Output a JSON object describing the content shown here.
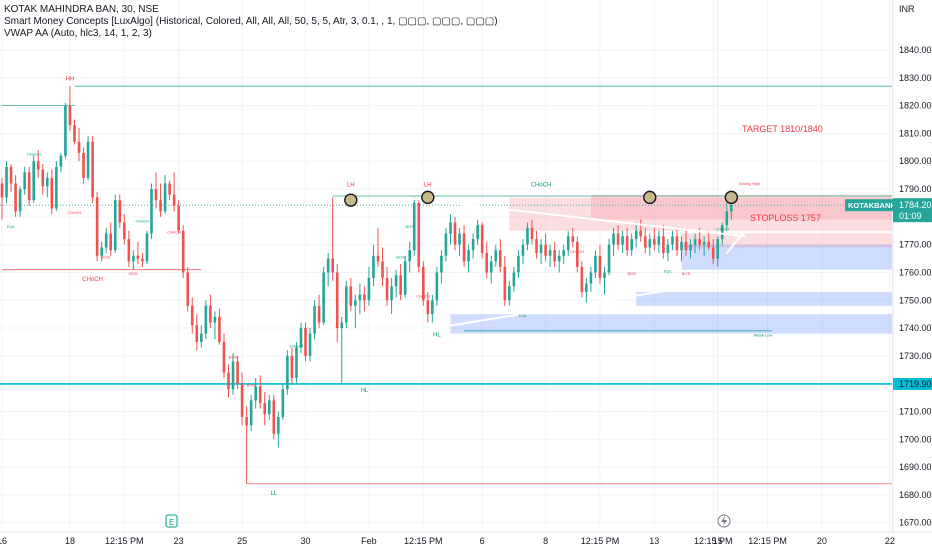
{
  "header": {
    "symbol_line": "KOTAK MAHINDRA BAN, 30, NSE",
    "indicator_smc": "Smart Money Concepts [LuxAlgo] (Historical, Colored, All, All, All, 50, 5, 5, Atr, 3, 0.1, , 1, ▢▢▢, ▢▢▢, ▢▢▢)",
    "indicator_vwap": "VWAP AA (Auto, hlc3, 14, 1, 2, 3)"
  },
  "chart_data": {
    "type": "candlestick",
    "currency_label": "INR",
    "y_ticks": [
      1840,
      1830,
      1820,
      1810,
      1800,
      1790,
      1780,
      1770,
      1760,
      1750,
      1740,
      1730,
      1720,
      1710,
      1700,
      1690,
      1680,
      1670
    ],
    "ylim": [
      1667,
      1858
    ],
    "x_ticks": [
      {
        "label": "16",
        "i": 0
      },
      {
        "label": "18",
        "i": 15
      },
      {
        "label": "12:15 PM",
        "i": 27
      },
      {
        "label": "23",
        "i": 39
      },
      {
        "label": "25",
        "i": 53
      },
      {
        "label": "30",
        "i": 67
      },
      {
        "label": "Feb",
        "i": 81
      },
      {
        "label": "12:15 PM",
        "i": 93
      },
      {
        "label": "6",
        "i": 106
      },
      {
        "label": "8",
        "i": 120
      },
      {
        "label": "12:15 PM",
        "i": 132
      },
      {
        "label": "13",
        "i": 144
      },
      {
        "label": "12:15 PM",
        "i": 157
      },
      {
        "label": "15",
        "i": 158
      },
      {
        "label": "12:15 PM",
        "i": 169
      },
      {
        "label": "20",
        "i": 181
      },
      {
        "label": "22",
        "i": 196
      }
    ],
    "last_price": {
      "symbol": "KOTAKBANK",
      "value": "1784.20",
      "countdown": "01:09",
      "price": 1784.2
    },
    "hline_price": {
      "value": "1719.90",
      "price": 1719.9
    },
    "colors": {
      "up": "#26a69a",
      "down": "#ef5350",
      "cyan": "#00bcd4",
      "bear_zone": "#f7a0a5",
      "bull_zone": "#2962ff",
      "structure_bear": "#f23645",
      "structure_bull": "#089981"
    },
    "candles": [
      [
        1792,
        1794,
        1779,
        1787
      ],
      [
        1787,
        1800,
        1785,
        1798
      ],
      [
        1798,
        1799,
        1789,
        1792
      ],
      [
        1792,
        1795,
        1780,
        1782
      ],
      [
        1782,
        1791,
        1780,
        1790
      ],
      [
        1790,
        1798,
        1788,
        1796
      ],
      [
        1796,
        1798,
        1784,
        1786
      ],
      [
        1786,
        1802,
        1785,
        1800
      ],
      [
        1800,
        1804,
        1794,
        1797
      ],
      [
        1797,
        1799,
        1788,
        1791
      ],
      [
        1791,
        1796,
        1787,
        1794
      ],
      [
        1794,
        1797,
        1781,
        1783
      ],
      [
        1783,
        1800,
        1782,
        1798
      ],
      [
        1798,
        1803,
        1796,
        1802
      ],
      [
        1802,
        1821,
        1801,
        1820
      ],
      [
        1820,
        1827,
        1811,
        1813
      ],
      [
        1813,
        1815,
        1806,
        1807
      ],
      [
        1807,
        1812,
        1800,
        1803
      ],
      [
        1803,
        1805,
        1792,
        1794
      ],
      [
        1794,
        1809,
        1793,
        1807
      ],
      [
        1807,
        1809,
        1785,
        1787
      ],
      [
        1787,
        1789,
        1764,
        1766
      ],
      [
        1766,
        1771,
        1764,
        1769
      ],
      [
        1769,
        1776,
        1767,
        1774
      ],
      [
        1774,
        1778,
        1766,
        1768
      ],
      [
        1768,
        1788,
        1767,
        1786
      ],
      [
        1786,
        1788,
        1776,
        1778
      ],
      [
        1778,
        1781,
        1770,
        1772
      ],
      [
        1772,
        1775,
        1762,
        1764
      ],
      [
        1764,
        1768,
        1761,
        1766
      ],
      [
        1766,
        1771,
        1763,
        1765
      ],
      [
        1765,
        1767,
        1762,
        1764
      ],
      [
        1764,
        1775,
        1763,
        1774
      ],
      [
        1774,
        1792,
        1772,
        1790
      ],
      [
        1790,
        1796,
        1783,
        1786
      ],
      [
        1786,
        1792,
        1780,
        1782
      ],
      [
        1782,
        1795,
        1781,
        1792
      ],
      [
        1792,
        1793,
        1786,
        1788
      ],
      [
        1788,
        1796,
        1782,
        1784
      ],
      [
        1784,
        1786,
        1774,
        1775
      ],
      [
        1775,
        1777,
        1758,
        1760
      ],
      [
        1760,
        1762,
        1746,
        1748
      ],
      [
        1748,
        1751,
        1738,
        1741
      ],
      [
        1741,
        1745,
        1732,
        1735
      ],
      [
        1735,
        1741,
        1733,
        1738
      ],
      [
        1738,
        1750,
        1736,
        1748
      ],
      [
        1748,
        1752,
        1740,
        1742
      ],
      [
        1742,
        1746,
        1736,
        1744
      ],
      [
        1744,
        1747,
        1734,
        1735
      ],
      [
        1735,
        1738,
        1722,
        1724
      ],
      [
        1724,
        1727,
        1715,
        1718
      ],
      [
        1718,
        1731,
        1716,
        1728
      ],
      [
        1728,
        1730,
        1718,
        1720
      ],
      [
        1720,
        1724,
        1705,
        1708
      ],
      [
        1708,
        1712,
        1684,
        1705
      ],
      [
        1705,
        1716,
        1703,
        1714
      ],
      [
        1714,
        1722,
        1711,
        1719
      ],
      [
        1719,
        1723,
        1711,
        1713
      ],
      [
        1713,
        1717,
        1705,
        1709
      ],
      [
        1709,
        1716,
        1707,
        1714
      ],
      [
        1714,
        1716,
        1700,
        1702
      ],
      [
        1702,
        1710,
        1697,
        1708
      ],
      [
        1708,
        1720,
        1707,
        1718
      ],
      [
        1718,
        1732,
        1716,
        1730
      ],
      [
        1730,
        1733,
        1720,
        1722
      ],
      [
        1722,
        1735,
        1720,
        1733
      ],
      [
        1733,
        1742,
        1731,
        1740
      ],
      [
        1740,
        1742,
        1728,
        1730
      ],
      [
        1730,
        1740,
        1728,
        1738
      ],
      [
        1738,
        1750,
        1736,
        1748
      ],
      [
        1748,
        1752,
        1740,
        1742
      ],
      [
        1742,
        1762,
        1741,
        1760
      ],
      [
        1760,
        1767,
        1755,
        1765
      ],
      [
        1765,
        1787,
        1757,
        1760
      ],
      [
        1760,
        1763,
        1735,
        1740
      ],
      [
        1740,
        1744,
        1720,
        1742
      ],
      [
        1742,
        1757,
        1740,
        1755
      ],
      [
        1755,
        1758,
        1746,
        1748
      ],
      [
        1748,
        1752,
        1740,
        1750
      ],
      [
        1750,
        1756,
        1745,
        1752
      ],
      [
        1752,
        1755,
        1746,
        1750
      ],
      [
        1750,
        1762,
        1748,
        1758
      ],
      [
        1758,
        1770,
        1755,
        1766
      ],
      [
        1766,
        1776,
        1762,
        1764
      ],
      [
        1764,
        1769,
        1755,
        1758
      ],
      [
        1758,
        1762,
        1748,
        1750
      ],
      [
        1750,
        1758,
        1745,
        1755
      ],
      [
        1755,
        1761,
        1751,
        1759
      ],
      [
        1759,
        1763,
        1750,
        1752
      ],
      [
        1752,
        1766,
        1751,
        1764
      ],
      [
        1764,
        1771,
        1760,
        1768
      ],
      [
        1768,
        1787,
        1766,
        1785
      ],
      [
        1785,
        1786,
        1760,
        1762
      ],
      [
        1762,
        1764,
        1748,
        1750
      ],
      [
        1750,
        1753,
        1742,
        1745
      ],
      [
        1745,
        1752,
        1742,
        1750
      ],
      [
        1750,
        1762,
        1748,
        1760
      ],
      [
        1760,
        1768,
        1756,
        1766
      ],
      [
        1766,
        1776,
        1764,
        1774
      ],
      [
        1774,
        1781,
        1770,
        1778
      ],
      [
        1778,
        1780,
        1768,
        1770
      ],
      [
        1770,
        1776,
        1766,
        1774
      ],
      [
        1774,
        1777,
        1762,
        1764
      ],
      [
        1764,
        1770,
        1760,
        1768
      ],
      [
        1768,
        1774,
        1765,
        1772
      ],
      [
        1772,
        1779,
        1770,
        1777
      ],
      [
        1777,
        1778,
        1765,
        1767
      ],
      [
        1767,
        1771,
        1758,
        1760
      ],
      [
        1760,
        1766,
        1756,
        1764
      ],
      [
        1764,
        1770,
        1762,
        1768
      ],
      [
        1768,
        1772,
        1760,
        1762
      ],
      [
        1762,
        1766,
        1748,
        1750
      ],
      [
        1750,
        1757,
        1748,
        1755
      ],
      [
        1755,
        1762,
        1753,
        1760
      ],
      [
        1760,
        1768,
        1758,
        1766
      ],
      [
        1766,
        1772,
        1763,
        1770
      ],
      [
        1770,
        1778,
        1768,
        1776
      ],
      [
        1776,
        1779,
        1770,
        1772
      ],
      [
        1772,
        1775,
        1765,
        1767
      ],
      [
        1767,
        1772,
        1763,
        1770
      ],
      [
        1770,
        1774,
        1764,
        1766
      ],
      [
        1766,
        1770,
        1762,
        1768
      ],
      [
        1768,
        1771,
        1762,
        1764
      ],
      [
        1764,
        1768,
        1760,
        1766
      ],
      [
        1766,
        1770,
        1763,
        1768
      ],
      [
        1768,
        1775,
        1766,
        1773
      ],
      [
        1773,
        1776,
        1769,
        1771
      ],
      [
        1771,
        1773,
        1760,
        1762
      ],
      [
        1762,
        1764,
        1751,
        1753
      ],
      [
        1753,
        1758,
        1749,
        1756
      ],
      [
        1756,
        1762,
        1753,
        1760
      ],
      [
        1760,
        1768,
        1758,
        1766
      ],
      [
        1766,
        1770,
        1756,
        1758
      ],
      [
        1758,
        1762,
        1752,
        1760
      ],
      [
        1760,
        1772,
        1759,
        1770
      ],
      [
        1770,
        1776,
        1766,
        1774
      ],
      [
        1774,
        1777,
        1768,
        1770
      ],
      [
        1770,
        1775,
        1767,
        1773
      ],
      [
        1773,
        1776,
        1766,
        1768
      ],
      [
        1768,
        1774,
        1766,
        1772
      ],
      [
        1772,
        1778,
        1769,
        1775
      ],
      [
        1775,
        1779,
        1771,
        1773
      ],
      [
        1773,
        1776,
        1767,
        1769
      ],
      [
        1769,
        1774,
        1766,
        1772
      ],
      [
        1772,
        1776,
        1768,
        1770
      ],
      [
        1770,
        1775,
        1767,
        1773
      ],
      [
        1773,
        1777,
        1765,
        1767
      ],
      [
        1767,
        1772,
        1764,
        1770
      ],
      [
        1770,
        1775,
        1768,
        1773
      ],
      [
        1773,
        1776,
        1766,
        1768
      ],
      [
        1768,
        1773,
        1764,
        1771
      ],
      [
        1771,
        1775,
        1766,
        1768
      ],
      [
        1768,
        1772,
        1765,
        1770
      ],
      [
        1770,
        1774,
        1767,
        1772
      ],
      [
        1772,
        1776,
        1768,
        1770
      ],
      [
        1770,
        1773,
        1766,
        1771
      ],
      [
        1771,
        1775,
        1768,
        1769
      ],
      [
        1769,
        1772,
        1763,
        1765
      ],
      [
        1765,
        1773,
        1762,
        1772
      ],
      [
        1772,
        1778,
        1770,
        1777
      ],
      [
        1777,
        1785,
        1775,
        1782
      ],
      [
        1782,
        1787,
        1779,
        1784.2
      ]
    ],
    "zones": [
      {
        "kind": "bear",
        "i0": 130,
        "i1": 199,
        "lo": 1779,
        "hi": 1788
      },
      {
        "kind": "bear",
        "i0": 112,
        "i1": 199,
        "lo": 1775,
        "hi": 1787
      },
      {
        "kind": "bear",
        "i0": 150,
        "i1": 199,
        "lo": 1769,
        "hi": 1774
      },
      {
        "kind": "bull",
        "i0": 150,
        "i1": 199,
        "lo": 1761,
        "hi": 1770
      },
      {
        "kind": "bull",
        "i0": 140,
        "i1": 199,
        "lo": 1748,
        "hi": 1753
      },
      {
        "kind": "bull",
        "i0": 99,
        "i1": 199,
        "lo": 1738,
        "hi": 1745
      }
    ],
    "levels": [
      {
        "price": 1827,
        "i0": 16,
        "i1": 199,
        "color": "#089981",
        "dash": false
      },
      {
        "price": 1787.5,
        "i0": 73,
        "i1": 199,
        "color": "#089981",
        "dash": false
      },
      {
        "price": 1820,
        "i0": 0,
        "i1": 16,
        "color": "#089981",
        "dash": false
      },
      {
        "price": 1761,
        "i0": 0,
        "i1": 44,
        "color": "#f23645",
        "dash": false
      },
      {
        "price": 1684,
        "i0": 54,
        "i1": 199,
        "color": "#f23645",
        "dash": false
      },
      {
        "price": 1739,
        "i0": 102,
        "i1": 170,
        "color": "#089981",
        "dash": false
      }
    ],
    "trendlines": [
      {
        "i0": 88,
        "p0": 1787,
        "i1": 164,
        "p1": 1773,
        "color": "#ffffff",
        "w": 2
      },
      {
        "i0": 88,
        "p0": 1738,
        "i1": 164,
        "p1": 1758,
        "color": "#ffffff",
        "w": 2
      },
      {
        "i0": 160,
        "p0": 1767,
        "i1": 164,
        "p1": 1775,
        "color": "#ffffff",
        "w": 2
      }
    ],
    "pivots": [
      {
        "i": 77,
        "price": 1786
      },
      {
        "i": 94,
        "price": 1787
      },
      {
        "i": 143,
        "price": 1787
      },
      {
        "i": 161,
        "price": 1787
      }
    ],
    "annotations": [
      {
        "text": "HH",
        "i": 15,
        "price": 1829,
        "color": "#f23645",
        "size": 6
      },
      {
        "text": "LH",
        "i": 77,
        "price": 1791,
        "color": "#f23645",
        "size": 6
      },
      {
        "text": "LH",
        "i": 94,
        "price": 1791,
        "color": "#f23645",
        "size": 6
      },
      {
        "text": "HL",
        "i": 80,
        "price": 1717,
        "color": "#089981",
        "size": 6
      },
      {
        "text": "HL",
        "i": 96,
        "price": 1737,
        "color": "#089981",
        "size": 6
      },
      {
        "text": "LL",
        "i": 60,
        "price": 1680,
        "color": "#089981",
        "size": 6
      },
      {
        "text": "CHoCH",
        "i": 119,
        "price": 1791,
        "color": "#089981",
        "size": 6
      },
      {
        "text": "CHoCH",
        "i": 20,
        "price": 1757,
        "color": "#f23645",
        "size": 6
      },
      {
        "text": "CHoCH",
        "i": 7,
        "price": 1802,
        "color": "#089981",
        "size": 4
      },
      {
        "text": "CHoCH",
        "i": 16,
        "price": 1781,
        "color": "#f23645",
        "size": 4
      },
      {
        "text": "CHoCH",
        "i": 31,
        "price": 1778,
        "color": "#089981",
        "size": 4
      },
      {
        "text": "CHoCH",
        "i": 38,
        "price": 1774,
        "color": "#f23645",
        "size": 4
      },
      {
        "text": "CHoCH",
        "i": 65,
        "price": 1733,
        "color": "#089981",
        "size": 4
      },
      {
        "text": "CHoCH",
        "i": 93,
        "price": 1751,
        "color": "#f23645",
        "size": 4
      },
      {
        "text": "CHoCH",
        "i": 127,
        "price": 1767,
        "color": "#f23645",
        "size": 4
      },
      {
        "text": "CHoCH",
        "i": 159,
        "price": 1775,
        "color": "#089981",
        "size": 4
      },
      {
        "text": "BOS",
        "i": 23,
        "price": 1765,
        "color": "#f23645",
        "size": 4
      },
      {
        "text": "BOS",
        "i": 29,
        "price": 1759,
        "color": "#f23645",
        "size": 4
      },
      {
        "text": "BOS",
        "i": 51,
        "price": 1729,
        "color": "#f23645",
        "size": 4
      },
      {
        "text": "BOS",
        "i": 55,
        "price": 1719,
        "color": "#f23645",
        "size": 4
      },
      {
        "text": "BOS",
        "i": 88,
        "price": 1765,
        "color": "#089981",
        "size": 4
      },
      {
        "text": "BOS",
        "i": 90,
        "price": 1776,
        "color": "#089981",
        "size": 4
      },
      {
        "text": "BOS",
        "i": 139,
        "price": 1759,
        "color": "#f23645",
        "size": 4
      },
      {
        "text": "BOS",
        "i": 151,
        "price": 1759,
        "color": "#f23645",
        "size": 4
      },
      {
        "text": "EQL",
        "i": 2,
        "price": 1776,
        "color": "#089981",
        "size": 4
      },
      {
        "text": "EQL",
        "i": 147,
        "price": 1760,
        "color": "#089981",
        "size": 4
      },
      {
        "text": "EQL",
        "i": 115,
        "price": 1744,
        "color": "#089981",
        "size": 4
      },
      {
        "text": "Strong High",
        "i": 165,
        "price": 1791.5,
        "color": "#f23645",
        "size": 4
      },
      {
        "text": "Weak Low",
        "i": 168,
        "price": 1737,
        "color": "#089981",
        "size": 4
      }
    ],
    "target_text": "TARGET 1810/1840",
    "stoploss_text": "STOPLOSS 1757"
  }
}
